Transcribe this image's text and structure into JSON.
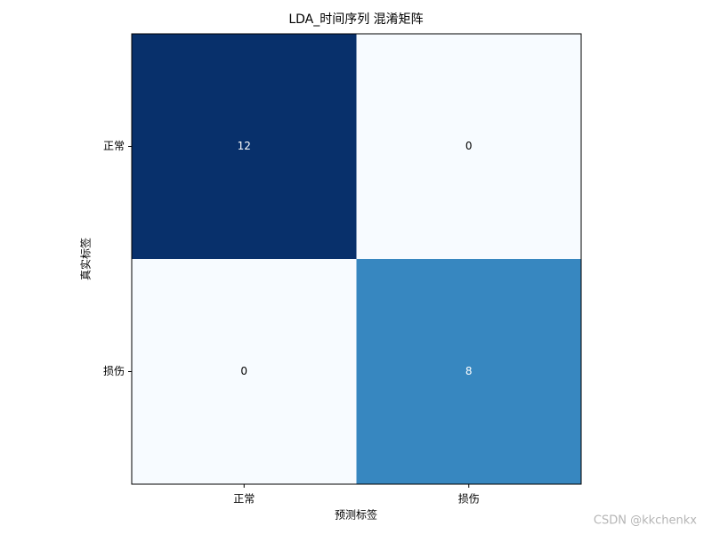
{
  "chart_data": {
    "type": "heatmap",
    "title": "LDA_时间序列 混淆矩阵",
    "x_label": "预测标签",
    "y_label": "真实标签",
    "x_categories": [
      "正常",
      "损伤"
    ],
    "y_categories": [
      "正常",
      "损伤"
    ],
    "values": [
      [
        12,
        0
      ],
      [
        0,
        8
      ]
    ],
    "colormap": "Blues"
  },
  "watermark": "CSDN @kkchenkx"
}
